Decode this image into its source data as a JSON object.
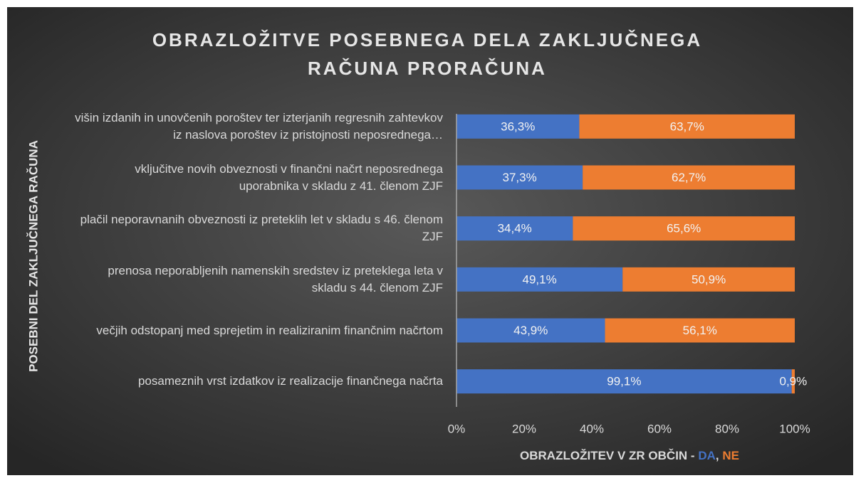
{
  "chart_data": {
    "type": "stacked_barh",
    "title": "OBRAZLOŽITVE POSEBNEGA DELA ZAKLJUČNEGA RAČUNA PRORAČUNA",
    "x_label": "OBRAZLOŽITEV V ZR OBČIN -",
    "y_label": "POSEBNI DEL ZAKLJUČNEGA RAČUNA",
    "categories": [
      "višin izdanih in unovčenih poroštev ter izterjanih regresnih zahtevkov iz naslova poroštev iz pristojnosti neposrednega…",
      "vključitve novih obveznosti v finančni načrt neposrednega uporabnika v skladu z 41. členom ZJF",
      "plačil neporavnanih obveznosti iz preteklih let v skladu s 46. členom ZJF",
      "prenosa neporabljenih namenskih sredstev iz preteklega leta v skladu s 44. členom ZJF",
      "večjih odstopanj med sprejetim in realiziranim finančnim načrtom",
      "posameznih vrst izdatkov iz realizacije finančnega načrta"
    ],
    "series": [
      {
        "name": "DA",
        "color": "#4472c4",
        "values": [
          36.3,
          37.3,
          34.4,
          49.1,
          43.9,
          99.1
        ],
        "value_labels": [
          "36,3%",
          "37,3%",
          "34,4%",
          "49,1%",
          "43,9%",
          "99,1%"
        ]
      },
      {
        "name": "NE",
        "color": "#ed7d31",
        "values": [
          63.7,
          62.7,
          65.6,
          50.9,
          56.1,
          0.9
        ],
        "value_labels": [
          "63,7%",
          "62,7%",
          "65,6%",
          "50,9%",
          "56,1%",
          "0,9%"
        ]
      }
    ],
    "xlim": [
      0,
      100
    ],
    "xticks": [
      {
        "value": 0,
        "label": "0%"
      },
      {
        "value": 20,
        "label": "20%"
      },
      {
        "value": 40,
        "label": "40%"
      },
      {
        "value": 60,
        "label": "60%"
      },
      {
        "value": 80,
        "label": "80%"
      },
      {
        "value": 100,
        "label": "100%"
      }
    ]
  }
}
